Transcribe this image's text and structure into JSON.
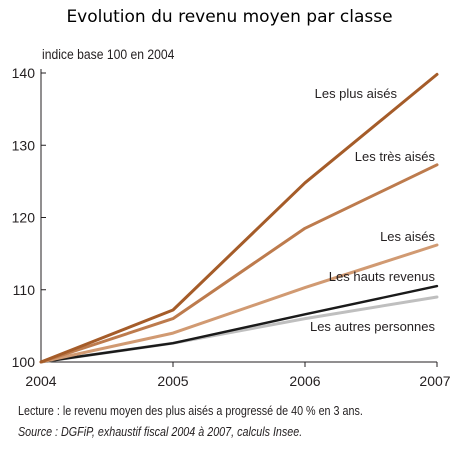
{
  "chart_data": {
    "type": "line",
    "title": "Evolution du revenu moyen par classe",
    "ylabel": "indice base 100 en 2004",
    "xlabel": "",
    "x": [
      "2004",
      "2005",
      "2006",
      "2007"
    ],
    "ylim": [
      100,
      140
    ],
    "yticks": [
      100,
      110,
      120,
      130,
      140
    ],
    "grid": false,
    "series": [
      {
        "name": "Les plus aisés",
        "values": [
          100,
          107.2,
          124.8,
          139.8
        ],
        "color": "#a55c29"
      },
      {
        "name": "Les très aisés",
        "values": [
          100,
          106.0,
          118.5,
          127.3
        ],
        "color": "#bd7b4d"
      },
      {
        "name": "Les aisés",
        "values": [
          100,
          104.0,
          110.3,
          116.2
        ],
        "color": "#d19a72"
      },
      {
        "name": "Les hauts revenus",
        "values": [
          100,
          102.6,
          106.6,
          110.5
        ],
        "color": "#1a1a1a"
      },
      {
        "name": "Les autres personnes",
        "values": [
          100,
          102.6,
          106.0,
          109.0
        ],
        "color": "#bfbfbf"
      }
    ]
  },
  "notes": {
    "reading": "Lecture : le revenu moyen des plus aisés a progressé de 40 % en 3 ans.",
    "source": "Source : DGFiP, exhaustif fiscal 2004 à 2007, calculs Insee."
  }
}
